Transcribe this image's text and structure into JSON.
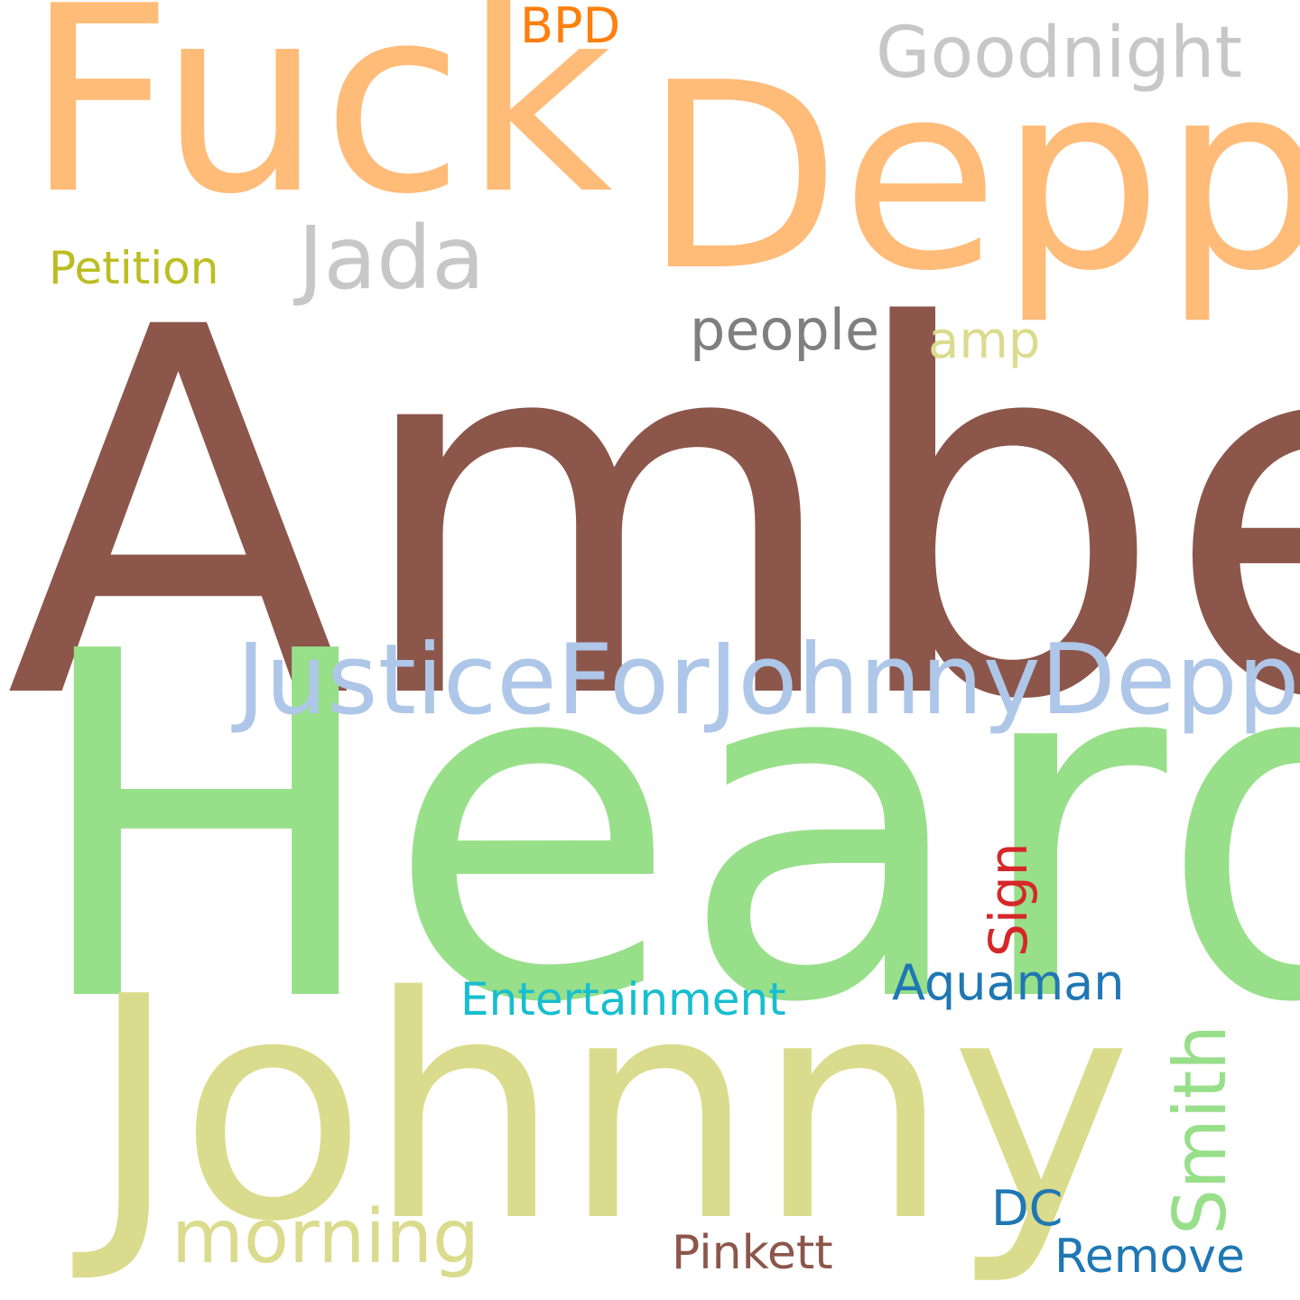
{
  "background_color": "#ffffff",
  "words": [
    {
      "id": "amber",
      "text": "Amber",
      "color": "#8c564b",
      "orientation": "horizontal"
    },
    {
      "id": "heard",
      "text": "Heard",
      "color": "#98df8a",
      "orientation": "horizontal"
    },
    {
      "id": "johnny",
      "text": "Johnny",
      "color": "#dbdb8d",
      "orientation": "horizontal"
    },
    {
      "id": "fuck",
      "text": "Fuck",
      "color": "#ffbb78",
      "orientation": "horizontal"
    },
    {
      "id": "depp",
      "text": "Depp",
      "color": "#ffbb78",
      "orientation": "horizontal"
    },
    {
      "id": "justice",
      "text": "JusticeForJohnnyDepp",
      "color": "#aec7e8",
      "orientation": "horizontal"
    },
    {
      "id": "jada",
      "text": "Jada",
      "color": "#c7c7c7",
      "orientation": "horizontal"
    },
    {
      "id": "goodnight",
      "text": "Goodnight",
      "color": "#c7c7c7",
      "orientation": "horizontal"
    },
    {
      "id": "morning",
      "text": "morning",
      "color": "#dbdb8d",
      "orientation": "horizontal"
    },
    {
      "id": "smith",
      "text": "Smith",
      "color": "#98df8a",
      "orientation": "vertical"
    },
    {
      "id": "people",
      "text": "people",
      "color": "#7f7f7f",
      "orientation": "horizontal"
    },
    {
      "id": "amp",
      "text": "amp",
      "color": "#dbdb8d",
      "orientation": "horizontal"
    },
    {
      "id": "petition",
      "text": "Petition",
      "color": "#bcbd22",
      "orientation": "horizontal"
    },
    {
      "id": "bpd",
      "text": "BPD",
      "color": "#ff7f0e",
      "orientation": "horizontal"
    },
    {
      "id": "entertain",
      "text": "Entertainment",
      "color": "#17becf",
      "orientation": "horizontal"
    },
    {
      "id": "aquaman",
      "text": "Aquaman",
      "color": "#1f77b4",
      "orientation": "horizontal"
    },
    {
      "id": "sign",
      "text": "Sign",
      "color": "#d62728",
      "orientation": "vertical"
    },
    {
      "id": "pinkett",
      "text": "Pinkett",
      "color": "#8c564b",
      "orientation": "horizontal"
    },
    {
      "id": "dc",
      "text": "DC",
      "color": "#1f77b4",
      "orientation": "horizontal"
    },
    {
      "id": "remove",
      "text": "Remove",
      "color": "#1f77b4",
      "orientation": "horizontal"
    }
  ]
}
